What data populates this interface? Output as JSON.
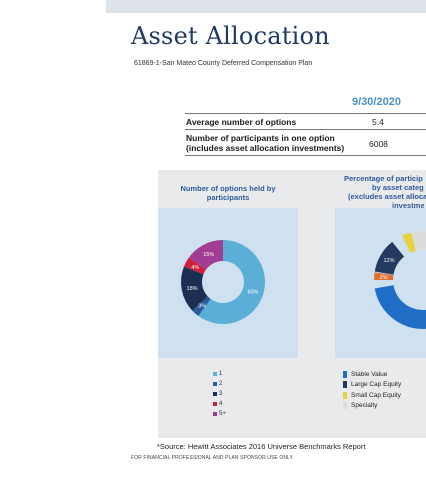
{
  "title": "Asset Allocation",
  "subtitle": "61869-1-San Mateo County Deferred Compensation Plan",
  "table": {
    "date_header": "9/30/2020",
    "rows": [
      {
        "label_lines": [
          "Average number of options"
        ],
        "value": "5.4"
      },
      {
        "label_lines": [
          "Number of participants in one option",
          "(includes asset allocation investments)"
        ],
        "value": "6008"
      }
    ]
  },
  "left_chart": {
    "title_lines": [
      "Number of options held by",
      "participants"
    ],
    "legend": [
      "1",
      "2",
      "3",
      "4",
      "5+"
    ]
  },
  "right_chart": {
    "title_lines": [
      "Percentage of particip",
      "by asset categ",
      "(excludes asset alloca",
      "investme"
    ],
    "legend": [
      "Stable Value",
      "Large Cap Equity",
      "Small Cap Equity",
      "Specialty"
    ]
  },
  "chart_data": [
    {
      "type": "pie",
      "title": "Number of options held by participants",
      "categories": [
        "1",
        "2",
        "3",
        "4",
        "5+"
      ],
      "values": [
        60,
        3,
        18,
        4,
        15
      ],
      "labels": [
        "60%",
        "3%",
        "18%",
        "4%",
        "15%"
      ],
      "colors": [
        "#5bafd6",
        "#2e5b9c",
        "#1c2f52",
        "#cf1f3e",
        "#a23d95"
      ]
    },
    {
      "type": "pie",
      "title": "Percentage of participants by asset category (excludes asset allocation investments)",
      "categories": [
        "Stable Value",
        "Large Cap Equity",
        "Small Cap Equity",
        "Specialty"
      ],
      "values": [
        null,
        12,
        2,
        null
      ],
      "labels": [
        "",
        "12%",
        "2%",
        ""
      ],
      "colors": [
        "#1f6dc5",
        "#243a5e",
        "#e8d23a",
        "#dcdcdc"
      ]
    }
  ],
  "footer": {
    "source": "*Source: Hewitt Associates 2016 Universe Benchmarks Report",
    "disclaimer": "FOR FINANCIAL PROFESSIONAL AND PLAN SPONSOR USE ONLY."
  }
}
